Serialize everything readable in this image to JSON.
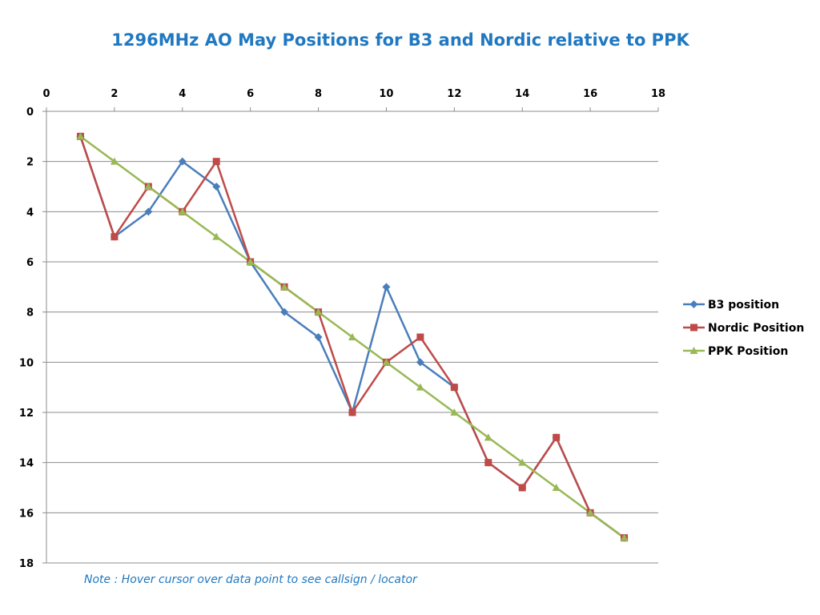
{
  "chart_data": {
    "type": "line",
    "title": "1296MHz AO May Positions for B3 and Nordic relative to PPK",
    "note": "Note : Hover cursor over data point to see callsign / locator",
    "xlim": [
      0,
      18
    ],
    "ylim": [
      0,
      18
    ],
    "y_reversed": true,
    "x_axis_position": "top",
    "xticks": [
      0,
      2,
      4,
      6,
      8,
      10,
      12,
      14,
      16,
      18
    ],
    "yticks": [
      0,
      2,
      4,
      6,
      8,
      10,
      12,
      14,
      16,
      18
    ],
    "grid": "horizontal",
    "legend_position": "right",
    "series": [
      {
        "name": "B3 position",
        "color": "#4a7ebb",
        "marker": "diamond",
        "x": [
          1,
          2,
          3,
          4,
          5,
          6,
          7,
          8,
          9,
          10,
          11,
          12,
          13,
          14,
          15,
          16,
          17
        ],
        "y": [
          1,
          5,
          4,
          2,
          3,
          6,
          8,
          9,
          12,
          7,
          10,
          11,
          14,
          15,
          13,
          16,
          17
        ]
      },
      {
        "name": "Nordic Position",
        "color": "#be4b48",
        "marker": "square",
        "x": [
          1,
          2,
          3,
          4,
          5,
          6,
          7,
          8,
          9,
          10,
          11,
          12,
          13,
          14,
          15,
          16,
          17
        ],
        "y": [
          1,
          5,
          3,
          4,
          2,
          6,
          7,
          8,
          12,
          10,
          9,
          11,
          14,
          15,
          13,
          16,
          17
        ]
      },
      {
        "name": "PPK Position",
        "color": "#98b954",
        "marker": "triangle",
        "x": [
          1,
          2,
          3,
          4,
          5,
          6,
          7,
          8,
          9,
          10,
          11,
          12,
          13,
          14,
          15,
          16,
          17
        ],
        "y": [
          1,
          2,
          3,
          4,
          5,
          6,
          7,
          8,
          9,
          10,
          11,
          12,
          13,
          14,
          15,
          16,
          17
        ]
      }
    ]
  }
}
